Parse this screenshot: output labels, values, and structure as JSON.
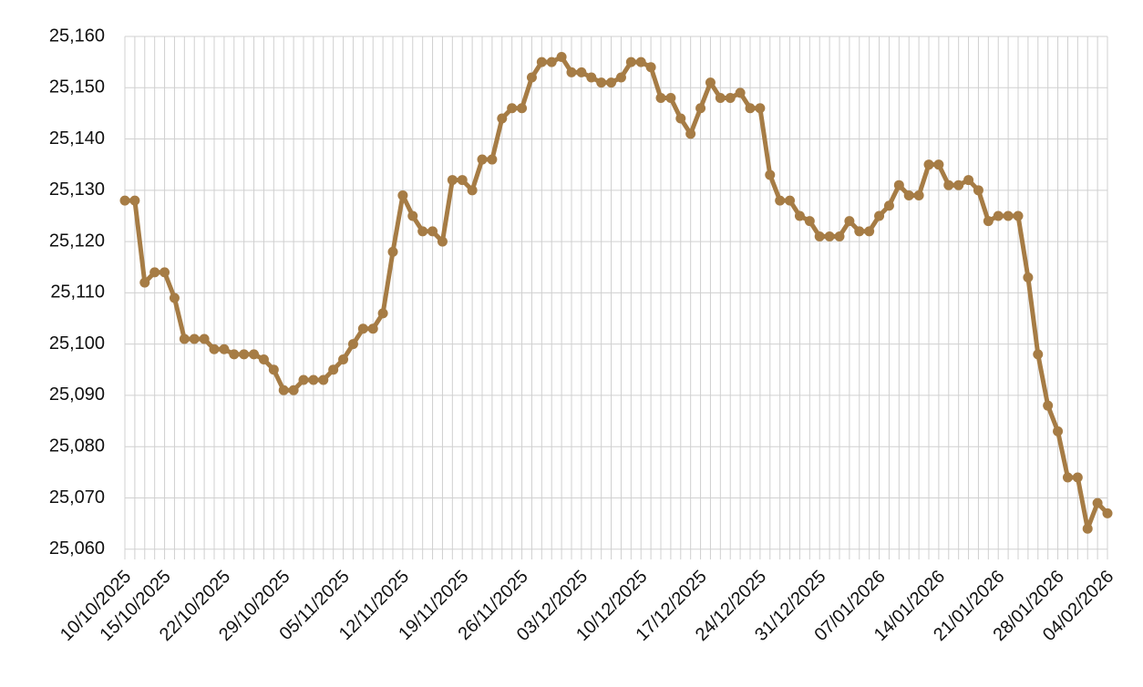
{
  "chart_data": {
    "type": "line",
    "categories": [
      "10/10/2025",
      null,
      null,
      null,
      "15/10/2025",
      null,
      null,
      null,
      null,
      null,
      "22/10/2025",
      null,
      null,
      null,
      null,
      null,
      "29/10/2025",
      null,
      null,
      null,
      null,
      null,
      "05/11/2025",
      null,
      null,
      null,
      null,
      null,
      "12/11/2025",
      null,
      null,
      null,
      null,
      null,
      "19/11/2025",
      null,
      null,
      null,
      null,
      null,
      "26/11/2025",
      null,
      null,
      null,
      null,
      null,
      "03/12/2025",
      null,
      null,
      null,
      null,
      null,
      "10/12/2025",
      null,
      null,
      null,
      null,
      null,
      "17/12/2025",
      null,
      null,
      null,
      null,
      null,
      "24/12/2025",
      null,
      null,
      null,
      null,
      null,
      "31/12/2025",
      null,
      null,
      null,
      null,
      null,
      "07/01/2026",
      null,
      null,
      null,
      null,
      null,
      "14/01/2026",
      null,
      null,
      null,
      null,
      null,
      "21/01/2026",
      null,
      null,
      null,
      null,
      null,
      "28/01/2026",
      null,
      null,
      null,
      null,
      "04/02/2026"
    ],
    "values": [
      25128,
      25128,
      25112,
      25114,
      25114,
      25109,
      25101,
      25101,
      25101,
      25099,
      25099,
      25098,
      25098,
      25098,
      25097,
      25095,
      25091,
      25091,
      25093,
      25093,
      25093,
      25095,
      25097,
      25100,
      25103,
      25103,
      25106,
      25118,
      25129,
      25125,
      25122,
      25122,
      25120,
      25132,
      25132,
      25130,
      25136,
      25136,
      25144,
      25146,
      25146,
      25152,
      25155,
      25155,
      25156,
      25153,
      25153,
      25152,
      25151,
      25151,
      25152,
      25155,
      25155,
      25154,
      25148,
      25148,
      25144,
      25141,
      25146,
      25151,
      25148,
      25148,
      25149,
      25146,
      25146,
      25133,
      25128,
      25128,
      25125,
      25124,
      25121,
      25121,
      25121,
      25124,
      25122,
      25122,
      25125,
      25127,
      25131,
      25129,
      25129,
      25135,
      25135,
      25131,
      25131,
      25132,
      25130,
      25124,
      25125,
      25125,
      25125,
      25113,
      25098,
      25088,
      25083,
      25074,
      25074,
      25064,
      25069,
      25067
    ],
    "color": "#a67c45",
    "ylim": [
      25058,
      25160
    ],
    "yticks": [
      {
        "value": 25060,
        "label": "25,060"
      },
      {
        "value": 25070,
        "label": "25,070"
      },
      {
        "value": 25080,
        "label": "25,080"
      },
      {
        "value": 25090,
        "label": "25,090"
      },
      {
        "value": 25100,
        "label": "25,100"
      },
      {
        "value": 25110,
        "label": "25,110"
      },
      {
        "value": 25120,
        "label": "25,120"
      },
      {
        "value": 25130,
        "label": "25,130"
      },
      {
        "value": 25140,
        "label": "25,140"
      },
      {
        "value": 25150,
        "label": "25,150"
      },
      {
        "value": 25160,
        "label": "25,160"
      }
    ],
    "grid": true
  }
}
